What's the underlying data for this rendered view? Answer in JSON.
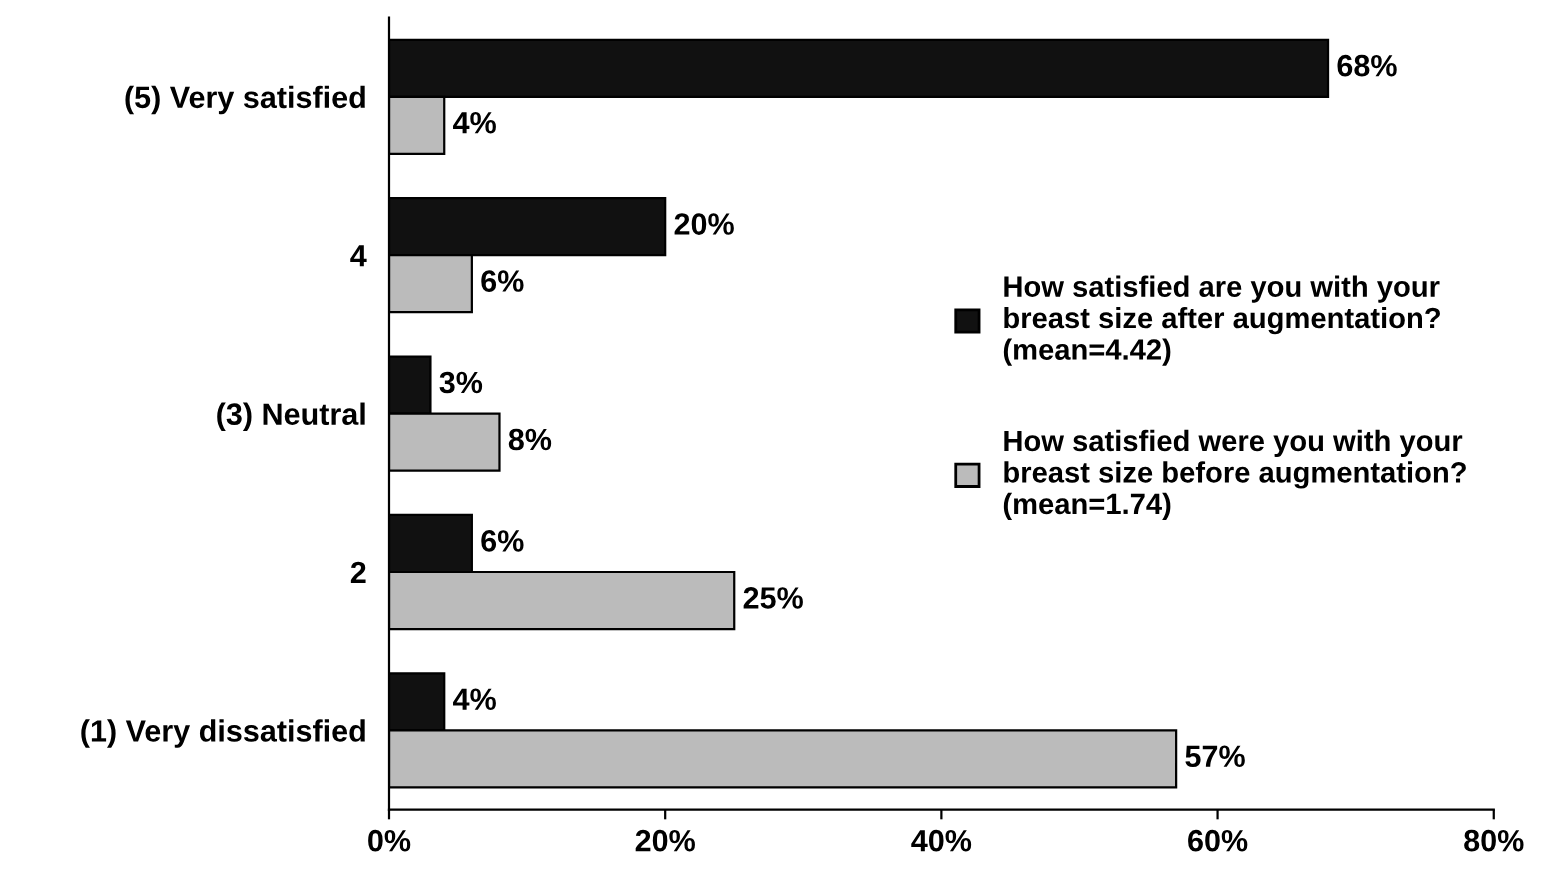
{
  "chart_data": {
    "type": "bar",
    "orientation": "horizontal",
    "categories": [
      "(5) Very satisfied",
      "4",
      "(3) Neutral",
      "2",
      "(1) Very dissatisfied"
    ],
    "series": [
      {
        "name": "How satisfied are you with your breast size after augmentation? (mean=4.42)",
        "color": "#111111",
        "values": [
          68,
          20,
          3,
          6,
          4
        ],
        "value_labels": [
          "68%",
          "20%",
          "3%",
          "6%",
          "4%"
        ]
      },
      {
        "name": "How satisfied were you with your breast size before augmentation? (mean=1.74)",
        "color": "#bbbbbb",
        "values": [
          4,
          6,
          8,
          25,
          57
        ],
        "value_labels": [
          "4%",
          "6%",
          "8%",
          "25%",
          "57%"
        ]
      }
    ],
    "xlim": [
      0,
      80
    ],
    "xticks": [
      {
        "value": 0,
        "label": "0%"
      },
      {
        "value": 20,
        "label": "20%"
      },
      {
        "value": 40,
        "label": "40%"
      },
      {
        "value": 60,
        "label": "60%"
      },
      {
        "value": 80,
        "label": "80%"
      }
    ],
    "grid": false,
    "legend": "right"
  }
}
